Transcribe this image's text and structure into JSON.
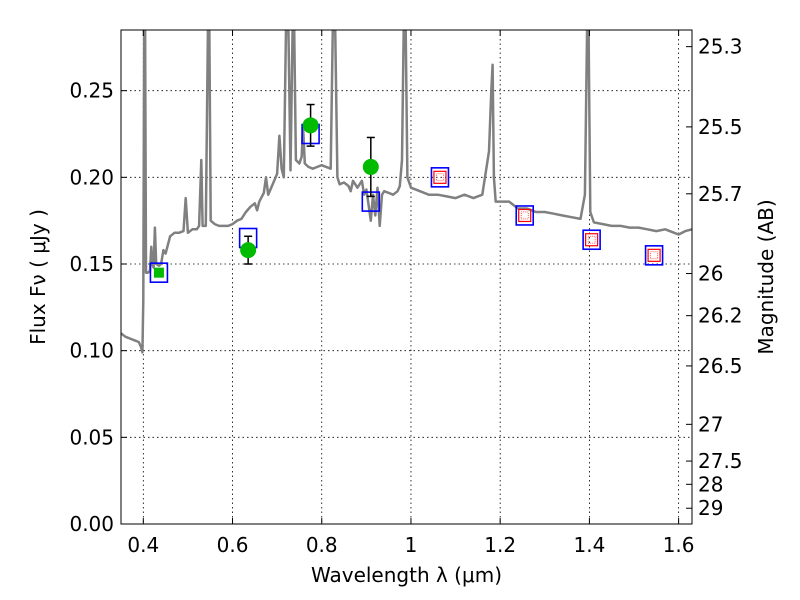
{
  "chart_data": {
    "type": "scatter",
    "xlabel": "Wavelength  λ (μm)",
    "ylabel": "Flux  Fν  ( μJy )",
    "ylabel_right": "Magnitude (AB)",
    "xlim": [
      0.35,
      1.63
    ],
    "ylim": [
      0.0,
      0.285
    ],
    "x_ticks": [
      0.4,
      0.6,
      0.8,
      1.0,
      1.2,
      1.4,
      1.6
    ],
    "x_tick_labels": [
      "0.4",
      "0.6",
      "0.8",
      "1",
      "1.2",
      "1.4",
      "1.6"
    ],
    "y_ticks": [
      0.0,
      0.05,
      0.1,
      0.15,
      0.2,
      0.25
    ],
    "y_tick_labels": [
      "0.00",
      "0.05",
      "0.10",
      "0.15",
      "0.20",
      "0.25"
    ],
    "right_ticks": [
      {
        "flux": 0.2754,
        "label": "25.3"
      },
      {
        "flux": 0.2291,
        "label": "25.5"
      },
      {
        "flux": 0.1905,
        "label": "25.7"
      },
      {
        "flux": 0.1445,
        "label": "26"
      },
      {
        "flux": 0.1202,
        "label": "26.2"
      },
      {
        "flux": 0.0912,
        "label": "26.5"
      },
      {
        "flux": 0.0575,
        "label": "27"
      },
      {
        "flux": 0.0363,
        "label": "27.5"
      },
      {
        "flux": 0.0229,
        "label": "28"
      },
      {
        "flux": 0.0091,
        "label": "29"
      }
    ],
    "grid": true,
    "colors": {
      "spectrum": "#808080",
      "model_box": "#0000ff",
      "observed": "#00bb00",
      "inner_square": "#ff0000",
      "error_bar": "#000000"
    },
    "series": [
      {
        "type": "line",
        "points": [
          [
            0.35,
            0.11
          ],
          [
            0.36,
            0.108
          ],
          [
            0.37,
            0.107
          ],
          [
            0.38,
            0.106
          ],
          [
            0.39,
            0.105
          ],
          [
            0.395,
            0.102
          ],
          [
            0.398,
            0.099
          ],
          [
            0.4,
            0.129
          ],
          [
            0.402,
            0.29
          ],
          [
            0.404,
            0.29
          ],
          [
            0.406,
            0.145
          ],
          [
            0.41,
            0.145
          ],
          [
            0.415,
            0.146
          ],
          [
            0.418,
            0.16
          ],
          [
            0.42,
            0.15
          ],
          [
            0.423,
            0.148
          ],
          [
            0.426,
            0.171
          ],
          [
            0.429,
            0.15
          ],
          [
            0.435,
            0.149
          ],
          [
            0.44,
            0.15
          ],
          [
            0.445,
            0.158
          ],
          [
            0.45,
            0.156
          ],
          [
            0.46,
            0.166
          ],
          [
            0.47,
            0.168
          ],
          [
            0.48,
            0.168
          ],
          [
            0.49,
            0.169
          ],
          [
            0.495,
            0.188
          ],
          [
            0.5,
            0.168
          ],
          [
            0.51,
            0.17
          ],
          [
            0.52,
            0.17
          ],
          [
            0.525,
            0.172
          ],
          [
            0.53,
            0.21
          ],
          [
            0.533,
            0.172
          ],
          [
            0.54,
            0.172
          ],
          [
            0.545,
            0.29
          ],
          [
            0.548,
            0.29
          ],
          [
            0.551,
            0.175
          ],
          [
            0.56,
            0.173
          ],
          [
            0.57,
            0.172
          ],
          [
            0.58,
            0.172
          ],
          [
            0.59,
            0.172
          ],
          [
            0.6,
            0.173
          ],
          [
            0.61,
            0.175
          ],
          [
            0.62,
            0.176
          ],
          [
            0.63,
            0.18
          ],
          [
            0.64,
            0.183
          ],
          [
            0.65,
            0.185
          ],
          [
            0.655,
            0.181
          ],
          [
            0.66,
            0.186
          ],
          [
            0.67,
            0.191
          ],
          [
            0.675,
            0.2
          ],
          [
            0.68,
            0.19
          ],
          [
            0.69,
            0.196
          ],
          [
            0.7,
            0.202
          ],
          [
            0.705,
            0.224
          ],
          [
            0.71,
            0.205
          ],
          [
            0.715,
            0.2
          ],
          [
            0.72,
            0.29
          ],
          [
            0.725,
            0.29
          ],
          [
            0.73,
            0.204
          ],
          [
            0.735,
            0.29
          ],
          [
            0.738,
            0.29
          ],
          [
            0.742,
            0.21
          ],
          [
            0.75,
            0.208
          ],
          [
            0.755,
            0.212
          ],
          [
            0.758,
            0.23
          ],
          [
            0.762,
            0.208
          ],
          [
            0.77,
            0.206
          ],
          [
            0.78,
            0.205
          ],
          [
            0.79,
            0.206
          ],
          [
            0.8,
            0.207
          ],
          [
            0.81,
            0.206
          ],
          [
            0.82,
            0.205
          ],
          [
            0.825,
            0.29
          ],
          [
            0.83,
            0.29
          ],
          [
            0.835,
            0.2
          ],
          [
            0.84,
            0.196
          ],
          [
            0.85,
            0.197
          ],
          [
            0.86,
            0.195
          ],
          [
            0.865,
            0.192
          ],
          [
            0.87,
            0.198
          ],
          [
            0.88,
            0.194
          ],
          [
            0.89,
            0.198
          ],
          [
            0.895,
            0.19
          ],
          [
            0.9,
            0.193
          ],
          [
            0.91,
            0.175
          ],
          [
            0.915,
            0.19
          ],
          [
            0.92,
            0.178
          ],
          [
            0.925,
            0.194
          ],
          [
            0.93,
            0.172
          ],
          [
            0.935,
            0.19
          ],
          [
            0.94,
            0.192
          ],
          [
            0.95,
            0.191
          ],
          [
            0.96,
            0.19
          ],
          [
            0.97,
            0.192
          ],
          [
            0.975,
            0.195
          ],
          [
            0.98,
            0.21
          ],
          [
            0.984,
            0.29
          ],
          [
            0.988,
            0.29
          ],
          [
            0.992,
            0.2
          ],
          [
            1.0,
            0.194
          ],
          [
            1.02,
            0.192
          ],
          [
            1.04,
            0.19
          ],
          [
            1.06,
            0.19
          ],
          [
            1.08,
            0.189
          ],
          [
            1.1,
            0.188
          ],
          [
            1.12,
            0.19
          ],
          [
            1.14,
            0.188
          ],
          [
            1.16,
            0.19
          ],
          [
            1.175,
            0.215
          ],
          [
            1.18,
            0.25
          ],
          [
            1.183,
            0.265
          ],
          [
            1.186,
            0.2
          ],
          [
            1.19,
            0.186
          ],
          [
            1.2,
            0.186
          ],
          [
            1.22,
            0.186
          ],
          [
            1.23,
            0.184
          ],
          [
            1.24,
            0.182
          ],
          [
            1.26,
            0.182
          ],
          [
            1.28,
            0.18
          ],
          [
            1.3,
            0.18
          ],
          [
            1.32,
            0.179
          ],
          [
            1.34,
            0.178
          ],
          [
            1.36,
            0.177
          ],
          [
            1.38,
            0.176
          ],
          [
            1.39,
            0.19
          ],
          [
            1.395,
            0.29
          ],
          [
            1.398,
            0.29
          ],
          [
            1.402,
            0.18
          ],
          [
            1.41,
            0.174
          ],
          [
            1.43,
            0.173
          ],
          [
            1.45,
            0.172
          ],
          [
            1.47,
            0.172
          ],
          [
            1.49,
            0.171
          ],
          [
            1.51,
            0.171
          ],
          [
            1.53,
            0.17
          ],
          [
            1.55,
            0.169
          ],
          [
            1.57,
            0.17
          ],
          [
            1.59,
            0.168
          ],
          [
            1.6,
            0.167
          ],
          [
            1.615,
            0.169
          ],
          [
            1.63,
            0.17
          ]
        ]
      },
      {
        "type": "box",
        "points": [
          [
            0.435,
            0.145
          ],
          [
            0.635,
            0.165
          ],
          [
            0.775,
            0.225
          ],
          [
            0.91,
            0.186
          ],
          [
            1.065,
            0.2
          ],
          [
            1.255,
            0.178
          ],
          [
            1.405,
            0.164
          ],
          [
            1.545,
            0.155
          ]
        ]
      },
      {
        "type": "inner-square",
        "points": [
          [
            1.065,
            0.2
          ],
          [
            1.255,
            0.178
          ],
          [
            1.405,
            0.164
          ],
          [
            1.545,
            0.155
          ]
        ]
      },
      {
        "type": "observed",
        "points": [
          {
            "x": 0.435,
            "y": 0.145,
            "yerr": 0.0
          },
          {
            "x": 0.635,
            "y": 0.158,
            "yerr": 0.008
          },
          {
            "x": 0.775,
            "y": 0.23,
            "yerr": 0.012
          },
          {
            "x": 0.91,
            "y": 0.206,
            "yerr": 0.017
          }
        ]
      }
    ]
  }
}
